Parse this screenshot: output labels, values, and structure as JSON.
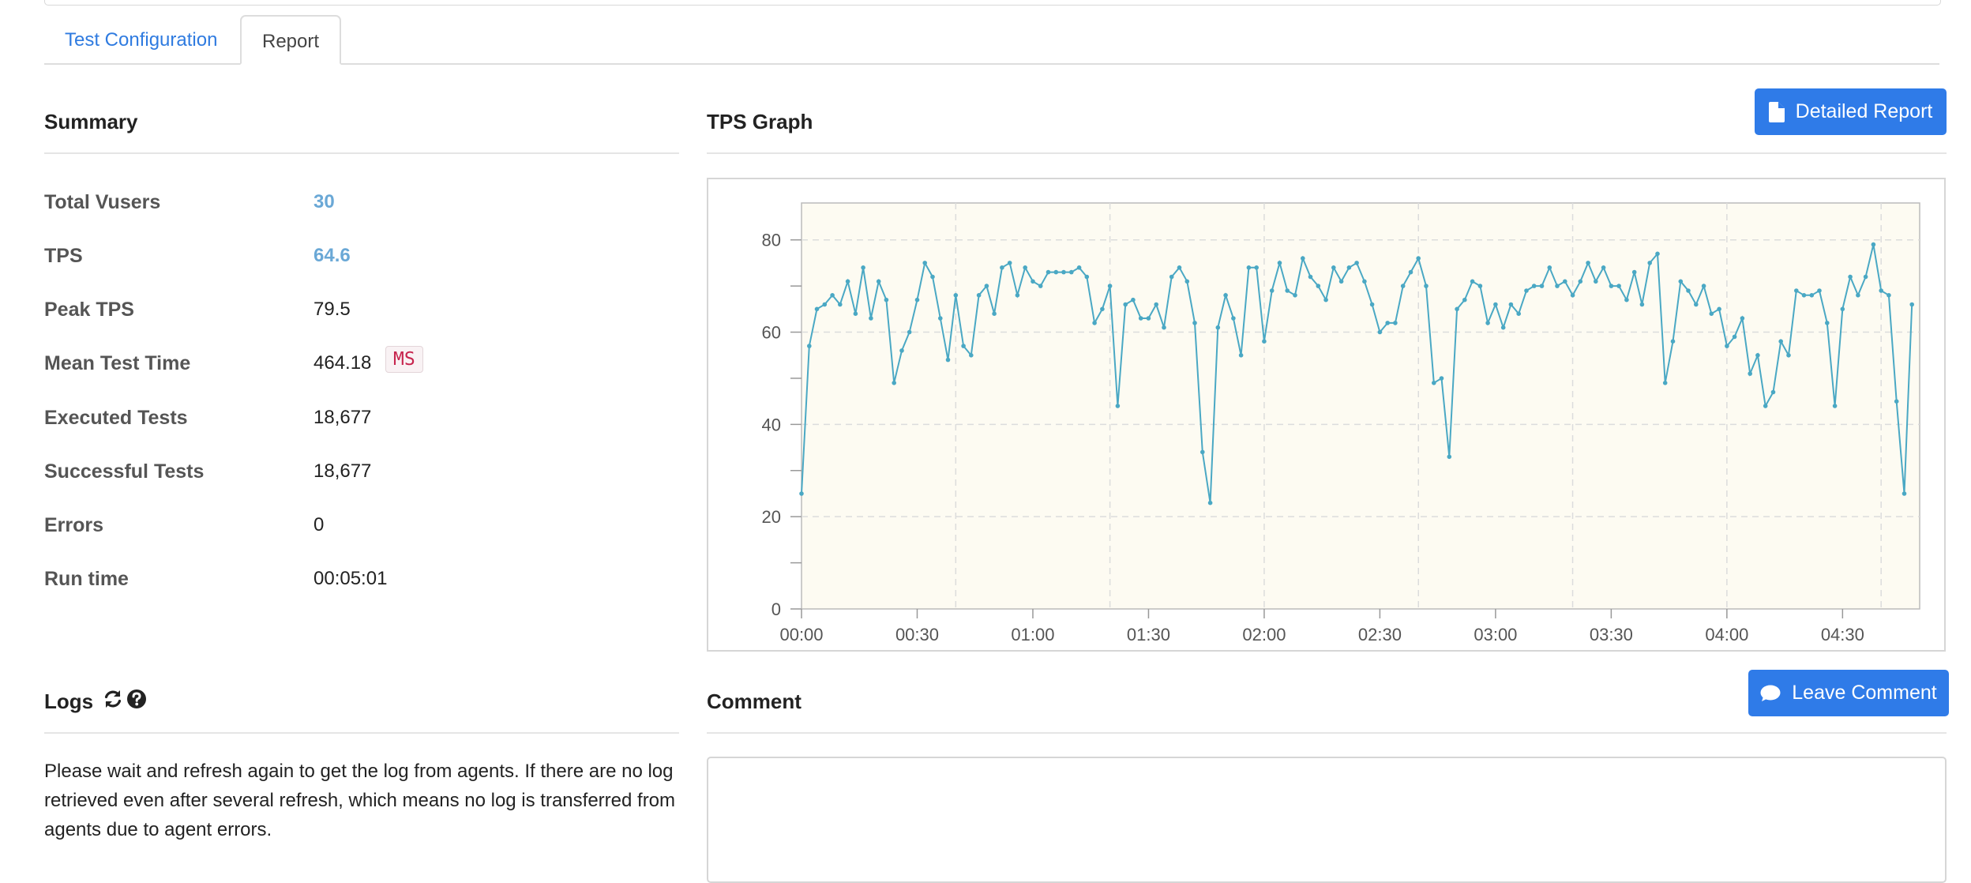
{
  "tabs": [
    {
      "label": "Test Configuration",
      "active": false
    },
    {
      "label": "Report",
      "active": true
    }
  ],
  "summary": {
    "title": "Summary",
    "rows": [
      {
        "label": "Total Vusers",
        "value": "30"
      },
      {
        "label": "TPS",
        "value": "64.6"
      },
      {
        "label": "Peak TPS",
        "value": "79.5"
      },
      {
        "label": "Mean Test Time",
        "value": "464.18",
        "unit": "MS"
      },
      {
        "label": "Executed Tests",
        "value": "18,677"
      },
      {
        "label": "Successful Tests",
        "value": "18,677"
      },
      {
        "label": "Errors",
        "value": "0"
      },
      {
        "label": "Run time",
        "value": "00:05:01"
      }
    ]
  },
  "tps_graph": {
    "title": "TPS Graph",
    "button_label": "Detailed Report",
    "button_icon": "file-icon"
  },
  "logs": {
    "title": "Logs",
    "refresh_icon": "refresh-icon",
    "help_icon": "question-circle-icon",
    "message": "Please wait and refresh again to get the log from agents. If there are no log retrieved even after several refresh, which means no log is transferred from agents due to agent errors."
  },
  "comment": {
    "title": "Comment",
    "button_label": "Leave Comment",
    "button_icon": "comment-icon",
    "value": ""
  },
  "colors": {
    "accent": "#2f7be8",
    "link": "#6aa8d6",
    "series": "#4aa8c4",
    "plot_bg": "#fdfbf2"
  },
  "chart_data": {
    "type": "line",
    "x_unit": "seconds",
    "xlim": [
      0,
      290
    ],
    "ylim": [
      0,
      88
    ],
    "x_ticks": [
      {
        "value": 0,
        "label": "00:00"
      },
      {
        "value": 30,
        "label": "00:30"
      },
      {
        "value": 60,
        "label": "01:00"
      },
      {
        "value": 90,
        "label": "01:30"
      },
      {
        "value": 120,
        "label": "02:00"
      },
      {
        "value": 150,
        "label": "02:30"
      },
      {
        "value": 180,
        "label": "03:00"
      },
      {
        "value": 210,
        "label": "03:30"
      },
      {
        "value": 240,
        "label": "04:00"
      },
      {
        "value": 270,
        "label": "04:30"
      }
    ],
    "y_ticks": [
      0,
      20,
      40,
      60,
      80
    ],
    "y_minor_ticks": [
      10,
      30,
      50,
      70
    ],
    "x_interval": 2,
    "grid": true,
    "series": [
      {
        "values": [
          25,
          57,
          65,
          66,
          68,
          66,
          71,
          64,
          74,
          63,
          71,
          67,
          49,
          56,
          60,
          67,
          75,
          72,
          63,
          54,
          68,
          57,
          55,
          68,
          70,
          64,
          74,
          75,
          68,
          74,
          71,
          70,
          73,
          73,
          73,
          73,
          74,
          72,
          62,
          65,
          70,
          44,
          66,
          67,
          63,
          63,
          66,
          61,
          72,
          74,
          71,
          62,
          34,
          23,
          61,
          68,
          63,
          55,
          74,
          74,
          58,
          69,
          75,
          69,
          68,
          76,
          72,
          70,
          67,
          74,
          71,
          74,
          75,
          71,
          66,
          60,
          62,
          62,
          70,
          73,
          76,
          70,
          49,
          50,
          33,
          65,
          67,
          71,
          70,
          62,
          66,
          61,
          66,
          64,
          69,
          70,
          70,
          74,
          70,
          71,
          68,
          71,
          75,
          71,
          74,
          70,
          70,
          67,
          73,
          66,
          75,
          77,
          49,
          58,
          71,
          69,
          66,
          70,
          64,
          65,
          57,
          59,
          63,
          51,
          55,
          44,
          47,
          58,
          55,
          69,
          68,
          68,
          69,
          62,
          44,
          65,
          72,
          68,
          72,
          79,
          69,
          68,
          45,
          25,
          66
        ]
      }
    ]
  }
}
